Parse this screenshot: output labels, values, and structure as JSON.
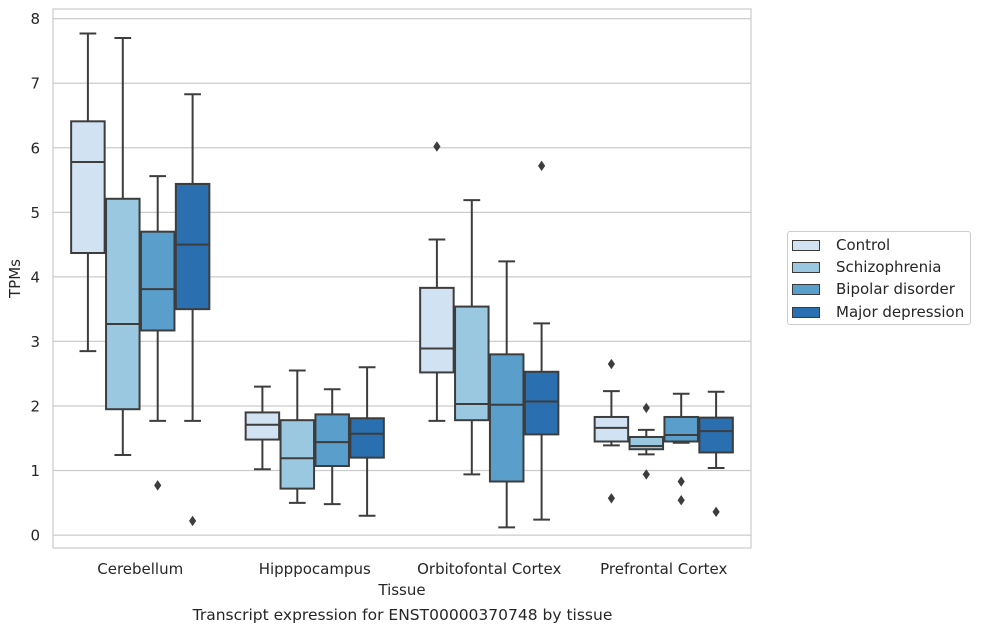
{
  "caption": "Transcript expression for ENST00000370748 by tissue",
  "chart_data": {
    "type": "box",
    "xlabel": "Tissue",
    "ylabel": "TPMs",
    "ylim": [
      -0.2,
      8.15
    ],
    "yticks": [
      0,
      1,
      2,
      3,
      4,
      5,
      6,
      7,
      8
    ],
    "grid": "horizontal",
    "legend_position": "right",
    "categories": [
      "Cerebellum",
      "Hipppocampus",
      "Orbitofontal Cortex",
      "Prefrontal Cortex"
    ],
    "series": [
      {
        "name": "Control",
        "color": "#d1e2f2",
        "boxes": [
          {
            "whisker_low": 2.85,
            "q1": 4.37,
            "median": 5.78,
            "q3": 6.41,
            "whisker_high": 7.77,
            "outliers": []
          },
          {
            "whisker_low": 1.02,
            "q1": 1.48,
            "median": 1.71,
            "q3": 1.9,
            "whisker_high": 2.3,
            "outliers": []
          },
          {
            "whisker_low": 1.77,
            "q1": 2.52,
            "median": 2.89,
            "q3": 3.83,
            "whisker_high": 4.58,
            "outliers": [
              6.02
            ]
          },
          {
            "whisker_low": 1.39,
            "q1": 1.45,
            "median": 1.66,
            "q3": 1.83,
            "whisker_high": 2.23,
            "outliers": [
              2.65,
              0.57
            ]
          }
        ]
      },
      {
        "name": "Schizophrenia",
        "color": "#9ac8e0",
        "boxes": [
          {
            "whisker_low": 1.24,
            "q1": 1.95,
            "median": 3.27,
            "q3": 5.21,
            "whisker_high": 7.7,
            "outliers": []
          },
          {
            "whisker_low": 0.5,
            "q1": 0.72,
            "median": 1.19,
            "q3": 1.78,
            "whisker_high": 2.55,
            "outliers": []
          },
          {
            "whisker_low": 0.94,
            "q1": 1.78,
            "median": 2.03,
            "q3": 3.54,
            "whisker_high": 5.19,
            "outliers": []
          },
          {
            "whisker_low": 1.25,
            "q1": 1.33,
            "median": 1.38,
            "q3": 1.52,
            "whisker_high": 1.63,
            "outliers": [
              1.97,
              0.94
            ]
          }
        ]
      },
      {
        "name": "Bipolar disorder",
        "color": "#5a9fcc",
        "boxes": [
          {
            "whisker_low": 1.77,
            "q1": 3.17,
            "median": 3.81,
            "q3": 4.7,
            "whisker_high": 5.56,
            "outliers": [
              0.77
            ]
          },
          {
            "whisker_low": 0.48,
            "q1": 1.07,
            "median": 1.44,
            "q3": 1.87,
            "whisker_high": 2.26,
            "outliers": []
          },
          {
            "whisker_low": 0.12,
            "q1": 0.83,
            "median": 2.02,
            "q3": 2.8,
            "whisker_high": 4.24,
            "outliers": []
          },
          {
            "whisker_low": 1.43,
            "q1": 1.45,
            "median": 1.55,
            "q3": 1.83,
            "whisker_high": 2.19,
            "outliers": [
              0.83,
              0.54
            ]
          }
        ]
      },
      {
        "name": "Major depression",
        "color": "#2a6fb0",
        "boxes": [
          {
            "whisker_low": 1.77,
            "q1": 3.5,
            "median": 4.5,
            "q3": 5.44,
            "whisker_high": 6.83,
            "outliers": [
              0.22
            ]
          },
          {
            "whisker_low": 0.3,
            "q1": 1.2,
            "median": 1.57,
            "q3": 1.81,
            "whisker_high": 2.6,
            "outliers": []
          },
          {
            "whisker_low": 0.24,
            "q1": 1.56,
            "median": 2.07,
            "q3": 2.53,
            "whisker_high": 3.28,
            "outliers": [
              5.72
            ]
          },
          {
            "whisker_low": 1.04,
            "q1": 1.28,
            "median": 1.61,
            "q3": 1.82,
            "whisker_high": 2.22,
            "outliers": [
              0.36
            ]
          }
        ]
      }
    ]
  }
}
